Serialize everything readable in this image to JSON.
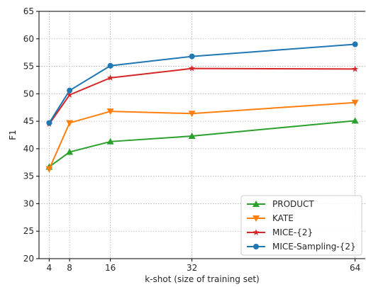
{
  "chart_data": {
    "type": "line",
    "x": [
      4,
      8,
      16,
      32,
      64
    ],
    "x_ticks": [
      4,
      8,
      16,
      32,
      64
    ],
    "y_ticks": [
      20,
      25,
      30,
      35,
      40,
      45,
      50,
      55,
      60,
      65
    ],
    "xlim": [
      2,
      66
    ],
    "ylim": [
      20,
      65
    ],
    "xlabel": "k-shot (size of training set)",
    "ylabel": "F1",
    "grid": true,
    "legend_position": "bottom-right",
    "series": [
      {
        "name": "PRODUCT",
        "color": "#2ca02c",
        "marker": "triangle-up",
        "values": [
          36.7,
          39.4,
          41.3,
          42.3,
          45.1
        ]
      },
      {
        "name": "KATE",
        "color": "#ff7f0e",
        "marker": "triangle-down",
        "values": [
          36.3,
          44.7,
          46.8,
          46.4,
          48.4
        ]
      },
      {
        "name": "MICE-{2}",
        "color": "#d62728",
        "marker": "star",
        "values": [
          44.5,
          49.8,
          52.9,
          54.6,
          54.5
        ]
      },
      {
        "name": "MICE-Sampling-{2}",
        "color": "#1f77b4",
        "marker": "circle",
        "values": [
          44.7,
          50.6,
          55.1,
          56.8,
          59.0
        ]
      }
    ]
  }
}
